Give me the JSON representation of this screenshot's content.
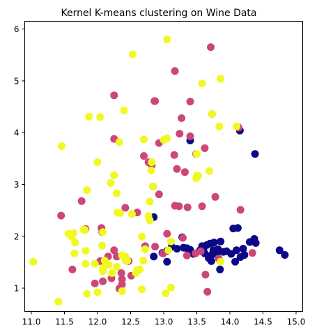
{
  "chart_data": {
    "type": "scatter",
    "title": "Kernel K-means clustering on Wine Data",
    "xlabel": "",
    "ylabel": "",
    "xlim": [
      10.9,
      15.1
    ],
    "ylim": [
      0.55,
      6.15
    ],
    "xticks": [
      11.0,
      11.5,
      12.0,
      12.5,
      13.0,
      13.5,
      14.0,
      14.5,
      15.0
    ],
    "xtick_labels": [
      "11.0",
      "11.5",
      "12.0",
      "12.5",
      "13.0",
      "13.5",
      "14.0",
      "14.5",
      "15.0"
    ],
    "yticks": [
      1,
      2,
      3,
      4,
      5,
      6
    ],
    "ytick_labels": [
      "1",
      "2",
      "3",
      "4",
      "5",
      "6"
    ],
    "grid": false,
    "legend": false,
    "series": [
      {
        "color": "#0d0887",
        "points": [
          [
            12.85,
            2.37
          ],
          [
            12.85,
            1.61
          ],
          [
            12.98,
            1.68
          ],
          [
            13.05,
            1.72
          ],
          [
            13.05,
            1.51
          ],
          [
            13.12,
            1.8
          ],
          [
            13.2,
            1.76
          ],
          [
            13.28,
            1.98
          ],
          [
            13.3,
            1.78
          ],
          [
            13.35,
            1.77
          ],
          [
            13.4,
            1.74
          ],
          [
            13.4,
            3.85
          ],
          [
            13.45,
            1.66
          ],
          [
            13.55,
            1.73
          ],
          [
            13.6,
            1.76
          ],
          [
            13.62,
            1.67
          ],
          [
            13.65,
            1.83
          ],
          [
            13.7,
            1.86
          ],
          [
            13.72,
            1.52
          ],
          [
            13.73,
            1.65
          ],
          [
            13.75,
            1.73
          ],
          [
            13.76,
            1.88
          ],
          [
            13.8,
            1.65
          ],
          [
            13.82,
            1.75
          ],
          [
            13.85,
            1.36
          ],
          [
            13.86,
            1.9
          ],
          [
            13.9,
            1.7
          ],
          [
            13.95,
            1.71
          ],
          [
            14.02,
            1.66
          ],
          [
            14.05,
            2.15
          ],
          [
            14.08,
            1.51
          ],
          [
            14.1,
            1.73
          ],
          [
            14.12,
            2.16
          ],
          [
            14.15,
            4.04
          ],
          [
            14.16,
            1.6
          ],
          [
            14.2,
            1.76
          ],
          [
            14.22,
            1.64
          ],
          [
            14.3,
            1.89
          ],
          [
            14.37,
            1.95
          ],
          [
            14.39,
            1.87
          ],
          [
            14.38,
            3.59
          ],
          [
            14.75,
            1.73
          ],
          [
            14.83,
            1.64
          ],
          [
            13.58,
            1.81
          ],
          [
            13.68,
            1.58
          ]
        ]
      },
      {
        "color": "#cc4778",
        "points": [
          [
            11.45,
            2.4
          ],
          [
            11.62,
            1.36
          ],
          [
            11.76,
            2.68
          ],
          [
            11.82,
            2.14
          ],
          [
            11.96,
            1.09
          ],
          [
            12.04,
            1.52
          ],
          [
            12.06,
            2.16
          ],
          [
            12.07,
            2.08
          ],
          [
            12.08,
            1.13
          ],
          [
            12.21,
            1.19
          ],
          [
            12.25,
            1.73
          ],
          [
            12.25,
            3.88
          ],
          [
            12.25,
            4.72
          ],
          [
            12.29,
            1.61
          ],
          [
            12.33,
            0.99
          ],
          [
            12.36,
            1.29
          ],
          [
            12.37,
            1.17
          ],
          [
            12.37,
            1.07
          ],
          [
            12.42,
            2.55
          ],
          [
            12.43,
            1.53
          ],
          [
            12.47,
            1.52
          ],
          [
            12.51,
            1.24
          ],
          [
            12.6,
            1.34
          ],
          [
            12.6,
            2.46
          ],
          [
            12.7,
            3.55
          ],
          [
            12.72,
            1.81
          ],
          [
            12.77,
            3.43
          ],
          [
            12.82,
            3.37
          ],
          [
            12.84,
            2.96
          ],
          [
            12.86,
            4.61
          ],
          [
            12.87,
            4.61
          ],
          [
            12.93,
            3.8
          ],
          [
            12.93,
            2.81
          ],
          [
            13.05,
            2.05
          ],
          [
            13.16,
            3.57
          ],
          [
            13.17,
            5.19
          ],
          [
            13.24,
            3.98
          ],
          [
            13.27,
            4.28
          ],
          [
            13.29,
            1.97
          ],
          [
            13.32,
            3.24
          ],
          [
            13.36,
            2.56
          ],
          [
            13.4,
            4.6
          ],
          [
            13.4,
            3.93
          ],
          [
            13.48,
            1.67
          ],
          [
            13.49,
            3.59
          ],
          [
            13.56,
            1.71
          ],
          [
            13.58,
            2.58
          ],
          [
            13.66,
            0.93
          ],
          [
            13.71,
            5.65
          ],
          [
            13.73,
            4.36
          ],
          [
            13.78,
            2.76
          ],
          [
            13.83,
            1.57
          ],
          [
            14.16,
            2.51
          ],
          [
            14.34,
            1.68
          ],
          [
            14.13,
            4.1
          ],
          [
            13.62,
            3.7
          ],
          [
            13.23,
            2.58
          ],
          [
            13.17,
            2.59
          ],
          [
            13.2,
            3.3
          ],
          [
            12.99,
            1.67
          ],
          [
            13.35,
            1.63
          ],
          [
            13.63,
            1.26
          ],
          [
            12.16,
            1.61
          ],
          [
            12.87,
            1.8
          ]
        ]
      },
      {
        "color": "#f0f921",
        "points": [
          [
            11.03,
            1.51
          ],
          [
            11.41,
            0.74
          ],
          [
            11.46,
            3.74
          ],
          [
            11.56,
            2.05
          ],
          [
            11.61,
            1.99
          ],
          [
            11.64,
            2.06
          ],
          [
            11.65,
            1.67
          ],
          [
            11.66,
            1.88
          ],
          [
            11.79,
            2.13
          ],
          [
            11.81,
            2.12
          ],
          [
            11.82,
            1.72
          ],
          [
            11.82,
            1.47
          ],
          [
            11.84,
            2.89
          ],
          [
            11.84,
            0.89
          ],
          [
            11.87,
            4.31
          ],
          [
            11.96,
            1.47
          ],
          [
            12.0,
            0.92
          ],
          [
            12.0,
            3.43
          ],
          [
            12.04,
            4.3
          ],
          [
            12.07,
            1.82
          ],
          [
            12.08,
            1.39
          ],
          [
            12.08,
            2.08
          ],
          [
            12.11,
            1.53
          ],
          [
            12.17,
            1.45
          ],
          [
            12.2,
            3.03
          ],
          [
            12.22,
            1.29
          ],
          [
            12.25,
            3.18
          ],
          [
            12.29,
            2.83
          ],
          [
            12.29,
            1.41
          ],
          [
            12.3,
            2.46
          ],
          [
            12.33,
            3.82
          ],
          [
            12.34,
            2.45
          ],
          [
            12.37,
            1.63
          ],
          [
            12.37,
            0.94
          ],
          [
            12.4,
            4.43
          ],
          [
            12.42,
            1.61
          ],
          [
            12.43,
            1.53
          ],
          [
            12.45,
            1.53
          ],
          [
            12.52,
            2.43
          ],
          [
            12.53,
            5.51
          ],
          [
            12.58,
            1.29
          ],
          [
            12.6,
            1.35
          ],
          [
            12.64,
            1.36
          ],
          [
            12.67,
            0.98
          ],
          [
            12.69,
            1.53
          ],
          [
            12.7,
            3.87
          ],
          [
            12.72,
            1.75
          ],
          [
            12.77,
            2.39
          ],
          [
            12.79,
            2.67
          ],
          [
            12.79,
            2.31
          ],
          [
            12.81,
            3.27
          ],
          [
            12.82,
            3.43
          ],
          [
            12.84,
            2.96
          ],
          [
            13.0,
            3.86
          ],
          [
            13.03,
            0.9
          ],
          [
            13.05,
            5.8
          ],
          [
            13.05,
            3.89
          ],
          [
            13.07,
            1.73
          ],
          [
            13.11,
            1.01
          ],
          [
            13.11,
            1.9
          ],
          [
            13.49,
            3.12
          ],
          [
            13.5,
            3.17
          ],
          [
            13.5,
            3.59
          ],
          [
            13.58,
            4.95
          ],
          [
            13.69,
            3.26
          ],
          [
            13.73,
            4.36
          ],
          [
            13.84,
            4.12
          ],
          [
            13.86,
            5.04
          ],
          [
            14.1,
            4.12
          ],
          [
            13.52,
            3.17
          ],
          [
            13.86,
            1.51
          ],
          [
            12.67,
            1.99
          ],
          [
            12.08,
            1.33
          ]
        ]
      }
    ]
  }
}
